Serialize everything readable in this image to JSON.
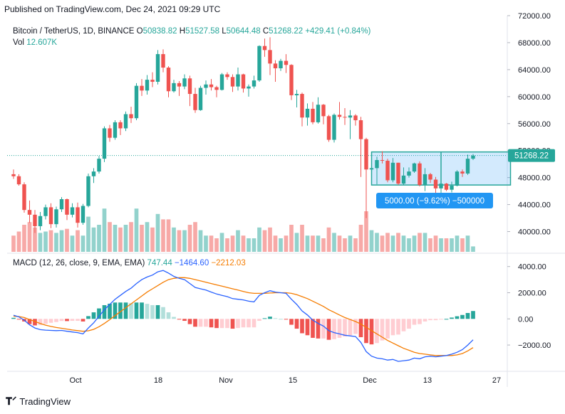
{
  "header": {
    "published": "Published on TradingView.com, Dec 24, 2021 09:29 UTC"
  },
  "legend": {
    "symbol": "Bitcoin / TetherUS, 1D, BINANCE",
    "open_label": "O",
    "open": "50838.82",
    "high_label": "H",
    "high": "51527.58",
    "low_label": "L",
    "low": "50644.48",
    "close_label": "C",
    "close": "51268.22",
    "change": "+429.41 (+0.84%)",
    "vol_label": "Vol",
    "vol": "12.607K"
  },
  "macd_legend": {
    "label": "MACD (12, 26, close, 9, EMA, EMA)",
    "hist": "747.44",
    "macd": "−1464.60",
    "signal": "−2212.03"
  },
  "footer": {
    "brand": "TradingView"
  },
  "colors": {
    "up": "#26a69a",
    "down": "#ef5350",
    "macd": "#2962ff",
    "signal": "#f57c00",
    "box": "#2196f3",
    "last_price": "#26a69a"
  },
  "chart_data": [
    {
      "type": "candlestick",
      "ylim": [
        37000,
        72000
      ],
      "y_ticks": [
        "72000.00",
        "68000.00",
        "64000.00",
        "60000.00",
        "56000.00",
        "52000.00",
        "48000.00",
        "44000.00",
        "40000.00"
      ],
      "y_tick_values": [
        72000,
        68000,
        64000,
        60000,
        56000,
        52000,
        48000,
        44000,
        40000
      ],
      "x_ticks": [
        "Oct",
        "18",
        "Nov",
        "15",
        "Dec",
        "13",
        "27"
      ],
      "last_price_label": "51268.22",
      "last_price": 51268.22,
      "range_box_label": "5000.00 (−9.62%) −500000",
      "range_box": {
        "top": 51800,
        "bottom": 46900,
        "x_start": 67,
        "x_end": 93
      },
      "candles": [
        [
          48500,
          49200,
          47800,
          48200
        ],
        [
          48200,
          48500,
          46800,
          47000
        ],
        [
          47000,
          47300,
          42800,
          43200
        ],
        [
          43200,
          44600,
          41300,
          42500
        ],
        [
          42500,
          43200,
          39800,
          40800
        ],
        [
          40800,
          42900,
          40200,
          42300
        ],
        [
          42300,
          44000,
          41800,
          43600
        ],
        [
          43600,
          44200,
          40500,
          41100
        ],
        [
          41100,
          43700,
          40600,
          43300
        ],
        [
          43300,
          45100,
          42900,
          44800
        ],
        [
          44800,
          44900,
          41700,
          42500
        ],
        [
          42500,
          44200,
          42100,
          43600
        ],
        [
          43600,
          44300,
          40600,
          41300
        ],
        [
          41300,
          44100,
          41000,
          43800
        ],
        [
          43800,
          48600,
          43600,
          48200
        ],
        [
          48200,
          49400,
          47200,
          48900
        ],
        [
          48900,
          51200,
          48600,
          50800
        ],
        [
          50800,
          55600,
          50300,
          55300
        ],
        [
          55300,
          55800,
          53300,
          53900
        ],
        [
          53900,
          56500,
          53600,
          56200
        ],
        [
          56200,
          56500,
          54300,
          55300
        ],
        [
          55300,
          57800,
          54900,
          57400
        ],
        [
          57400,
          58500,
          56100,
          56800
        ],
        [
          56800,
          62000,
          56500,
          61600
        ],
        [
          61600,
          62600,
          60100,
          60900
        ],
        [
          60900,
          63200,
          60300,
          62500
        ],
        [
          62500,
          63600,
          61400,
          62200
        ],
        [
          62200,
          66900,
          61800,
          66300
        ],
        [
          66300,
          67000,
          63600,
          64300
        ],
        [
          64300,
          64500,
          59900,
          60800
        ],
        [
          60800,
          62500,
          60600,
          62000
        ],
        [
          62000,
          62300,
          60100,
          61500
        ],
        [
          61500,
          63300,
          61100,
          62700
        ],
        [
          62700,
          63100,
          58600,
          60400
        ],
        [
          60400,
          61300,
          57600,
          58000
        ],
        [
          58000,
          61600,
          57900,
          61300
        ],
        [
          61300,
          62400,
          60300,
          61800
        ],
        [
          61800,
          62600,
          60900,
          61400
        ],
        [
          61400,
          61600,
          59900,
          61000
        ],
        [
          61000,
          63500,
          60900,
          63300
        ],
        [
          63300,
          63600,
          62500,
          62900
        ],
        [
          62900,
          63300,
          60700,
          61500
        ],
        [
          61500,
          64300,
          60900,
          63300
        ],
        [
          63300,
          63400,
          60600,
          61200
        ],
        [
          61200,
          61800,
          60000,
          61500
        ],
        [
          61500,
          63100,
          61200,
          62400
        ],
        [
          62400,
          67600,
          62200,
          67500
        ],
        [
          67500,
          68600,
          65900,
          66900
        ],
        [
          66900,
          68800,
          63200,
          64900
        ],
        [
          64900,
          65400,
          62200,
          64200
        ],
        [
          64200,
          65600,
          63800,
          65300
        ],
        [
          65300,
          66300,
          63500,
          64700
        ],
        [
          64700,
          64800,
          59500,
          60200
        ],
        [
          60200,
          61000,
          58400,
          60400
        ],
        [
          60400,
          60600,
          55600,
          56900
        ],
        [
          56900,
          59000,
          55700,
          58200
        ],
        [
          58200,
          59200,
          55900,
          56200
        ],
        [
          56200,
          59900,
          56000,
          58800
        ],
        [
          58800,
          58900,
          55900,
          57100
        ],
        [
          57100,
          57300,
          53300,
          53600
        ],
        [
          53600,
          57500,
          53200,
          57300
        ],
        [
          57300,
          59200,
          56600,
          57000
        ],
        [
          57000,
          58300,
          55800,
          56900
        ],
        [
          56900,
          58000,
          53700,
          57200
        ],
        [
          57200,
          57400,
          55700,
          56500
        ],
        [
          56500,
          57000,
          48100,
          53700
        ],
        [
          53700,
          53900,
          42000,
          49200
        ],
        [
          49200,
          50000,
          47300,
          49400
        ],
        [
          49400,
          51100,
          47000,
          50600
        ],
        [
          50600,
          51900,
          50100,
          50500
        ],
        [
          50500,
          50800,
          47300,
          47600
        ],
        [
          47600,
          50900,
          47300,
          50200
        ],
        [
          50200,
          50200,
          46900,
          47100
        ],
        [
          47100,
          49500,
          46900,
          48300
        ],
        [
          48300,
          49500,
          48000,
          48900
        ],
        [
          48900,
          50200,
          48700,
          50100
        ],
        [
          50100,
          50400,
          46700,
          46900
        ],
        [
          46900,
          49400,
          46000,
          48500
        ],
        [
          48500,
          48700,
          47200,
          47700
        ],
        [
          47700,
          48100,
          45600,
          46400
        ],
        [
          46400,
          47500,
          45500,
          47100
        ],
        [
          47100,
          47200,
          46000,
          46200
        ],
        [
          46200,
          47400,
          45800,
          46800
        ],
        [
          46800,
          49100,
          46700,
          48900
        ],
        [
          48900,
          49200,
          48100,
          48600
        ],
        [
          48600,
          51400,
          48400,
          50800
        ],
        [
          50800,
          51500,
          50600,
          51268
        ]
      ],
      "volume": [
        [
          0.6,
          "down"
        ],
        [
          0.75,
          "down"
        ],
        [
          1.0,
          "down"
        ],
        [
          1.1,
          "down"
        ],
        [
          0.9,
          "down"
        ],
        [
          0.7,
          "up"
        ],
        [
          0.75,
          "up"
        ],
        [
          0.8,
          "down"
        ],
        [
          0.7,
          "up"
        ],
        [
          0.8,
          "up"
        ],
        [
          0.85,
          "down"
        ],
        [
          0.6,
          "up"
        ],
        [
          0.8,
          "down"
        ],
        [
          0.6,
          "up"
        ],
        [
          1.3,
          "up"
        ],
        [
          0.9,
          "up"
        ],
        [
          1.0,
          "up"
        ],
        [
          1.6,
          "up"
        ],
        [
          1.1,
          "down"
        ],
        [
          1.0,
          "up"
        ],
        [
          0.9,
          "down"
        ],
        [
          1.0,
          "up"
        ],
        [
          1.1,
          "down"
        ],
        [
          1.6,
          "up"
        ],
        [
          1.0,
          "down"
        ],
        [
          1.1,
          "up"
        ],
        [
          0.9,
          "down"
        ],
        [
          1.4,
          "up"
        ],
        [
          1.2,
          "down"
        ],
        [
          1.2,
          "down"
        ],
        [
          0.9,
          "up"
        ],
        [
          0.8,
          "down"
        ],
        [
          0.8,
          "up"
        ],
        [
          1.0,
          "down"
        ],
        [
          1.1,
          "down"
        ],
        [
          0.8,
          "up"
        ],
        [
          0.6,
          "up"
        ],
        [
          0.6,
          "down"
        ],
        [
          0.5,
          "down"
        ],
        [
          0.7,
          "up"
        ],
        [
          0.5,
          "down"
        ],
        [
          0.6,
          "down"
        ],
        [
          0.8,
          "up"
        ],
        [
          0.6,
          "down"
        ],
        [
          0.5,
          "up"
        ],
        [
          0.5,
          "up"
        ],
        [
          0.9,
          "up"
        ],
        [
          0.8,
          "down"
        ],
        [
          0.9,
          "down"
        ],
        [
          0.6,
          "down"
        ],
        [
          0.5,
          "up"
        ],
        [
          0.6,
          "down"
        ],
        [
          1.0,
          "down"
        ],
        [
          0.7,
          "up"
        ],
        [
          1.0,
          "down"
        ],
        [
          0.6,
          "up"
        ],
        [
          0.6,
          "down"
        ],
        [
          0.6,
          "up"
        ],
        [
          0.5,
          "down"
        ],
        [
          0.9,
          "down"
        ],
        [
          0.7,
          "up"
        ],
        [
          0.6,
          "down"
        ],
        [
          0.5,
          "down"
        ],
        [
          0.6,
          "up"
        ],
        [
          0.5,
          "down"
        ],
        [
          1.0,
          "down"
        ],
        [
          1.5,
          "down"
        ],
        [
          0.8,
          "up"
        ],
        [
          0.7,
          "up"
        ],
        [
          0.6,
          "down"
        ],
        [
          0.7,
          "down"
        ],
        [
          0.6,
          "up"
        ],
        [
          0.7,
          "down"
        ],
        [
          0.6,
          "up"
        ],
        [
          0.5,
          "up"
        ],
        [
          0.6,
          "up"
        ],
        [
          0.7,
          "down"
        ],
        [
          0.7,
          "up"
        ],
        [
          0.5,
          "down"
        ],
        [
          0.6,
          "down"
        ],
        [
          0.5,
          "up"
        ],
        [
          0.5,
          "down"
        ],
        [
          0.5,
          "up"
        ],
        [
          0.6,
          "up"
        ],
        [
          0.5,
          "down"
        ],
        [
          0.6,
          "up"
        ],
        [
          0.2,
          "up"
        ]
      ]
    },
    {
      "type": "macd",
      "ylim": [
        -3900,
        4800
      ],
      "y_ticks": [
        "4000.00",
        "2000.00",
        "0.00",
        "−2000.00"
      ],
      "y_tick_values": [
        4000,
        2000,
        0,
        -2000
      ],
      "macd": [
        280,
        150,
        -100,
        -450,
        -700,
        -820,
        -860,
        -880,
        -900,
        -880,
        -950,
        -1000,
        -1050,
        -1150,
        -700,
        -300,
        200,
        700,
        1100,
        1500,
        1800,
        2100,
        2350,
        2700,
        3000,
        3200,
        3350,
        3600,
        3700,
        3500,
        3250,
        3100,
        3000,
        2700,
        2400,
        2300,
        2200,
        2050,
        1900,
        1800,
        1700,
        1550,
        1500,
        1450,
        1350,
        1300,
        1800,
        2000,
        2150,
        2050,
        2000,
        1950,
        1500,
        1100,
        600,
        300,
        -100,
        -350,
        -550,
        -900,
        -1050,
        -1150,
        -1250,
        -1300,
        -1350,
        -1800,
        -2500,
        -2850,
        -3000,
        -3050,
        -3150,
        -3100,
        -3250,
        -3200,
        -3150,
        -3000,
        -3050,
        -2900,
        -2850,
        -2900,
        -2850,
        -2800,
        -2700,
        -2550,
        -2350,
        -2000,
        -1600
      ],
      "signal": [
        200,
        180,
        100,
        -50,
        -200,
        -350,
        -480,
        -580,
        -660,
        -720,
        -780,
        -850,
        -900,
        -950,
        -910,
        -800,
        -600,
        -350,
        -60,
        250,
        550,
        850,
        1150,
        1450,
        1750,
        2050,
        2300,
        2550,
        2800,
        3000,
        3100,
        3150,
        3150,
        3100,
        3000,
        2900,
        2800,
        2700,
        2600,
        2500,
        2400,
        2300,
        2200,
        2100,
        2000,
        1950,
        1950,
        1950,
        1980,
        2000,
        2000,
        2000,
        1950,
        1850,
        1700,
        1550,
        1350,
        1150,
        950,
        700,
        500,
        300,
        100,
        -50,
        -200,
        -400,
        -650,
        -900,
        -1150,
        -1400,
        -1650,
        -1850,
        -2050,
        -2250,
        -2400,
        -2550,
        -2650,
        -2700,
        -2750,
        -2800,
        -2800,
        -2800,
        -2800,
        -2750,
        -2650,
        -2450,
        -2200
      ]
    }
  ]
}
